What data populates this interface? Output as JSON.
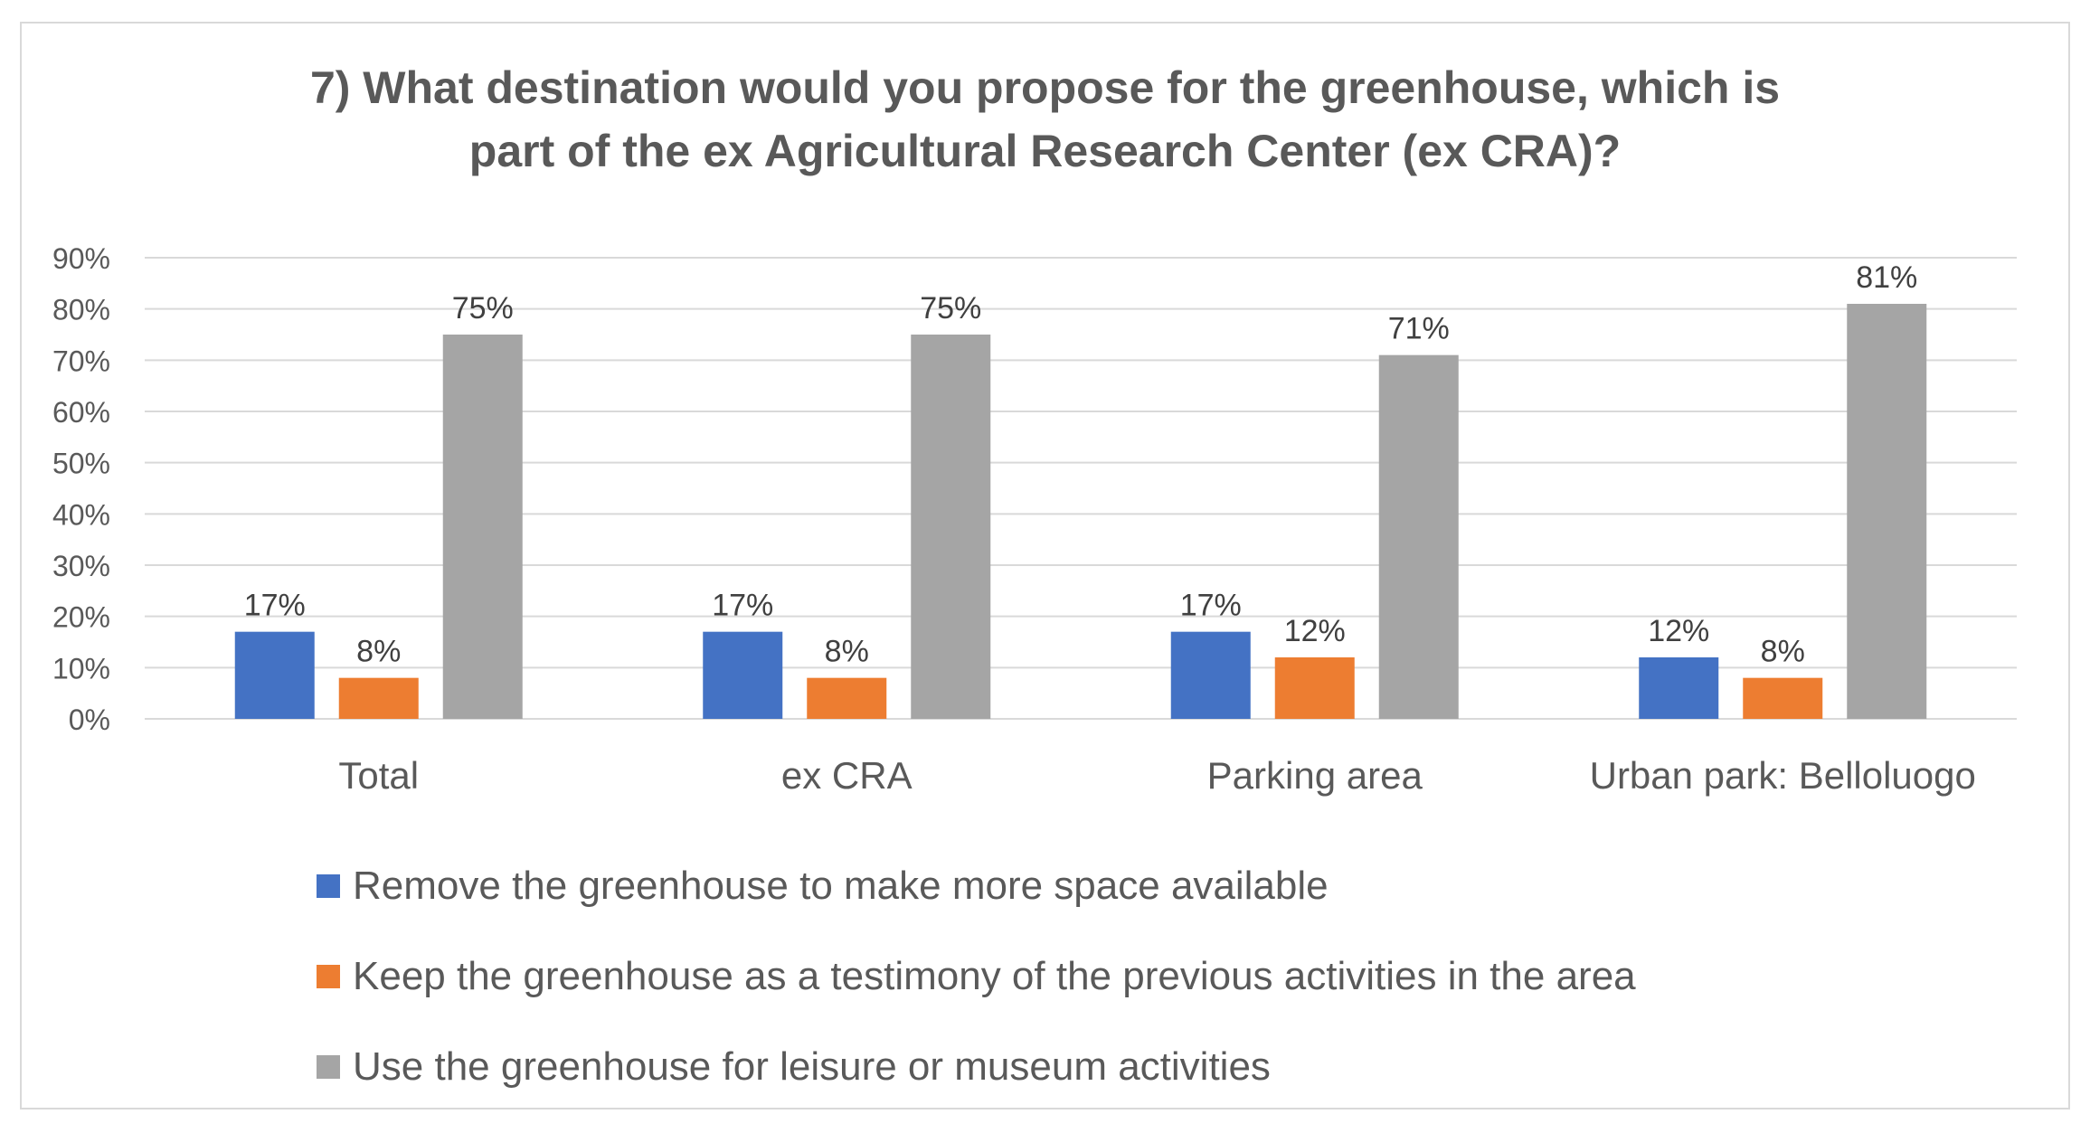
{
  "chart_data": {
    "type": "bar",
    "title_lines": [
      "7) What destination would you propose for the greenhouse, which is",
      "part of the ex Agricultural Research Center (ex CRA)?"
    ],
    "categories": [
      "Total",
      "ex CRA",
      "Parking area",
      "Urban park: Belloluogo"
    ],
    "series": [
      {
        "name": "Remove the greenhouse to make more space available",
        "values": [
          17,
          17,
          17,
          12
        ],
        "labels": [
          "17%",
          "17%",
          "17%",
          "12%"
        ],
        "color": "#4472c4"
      },
      {
        "name": "Keep the greenhouse as a testimony of the previous activities in the area",
        "values": [
          8,
          8,
          12,
          8
        ],
        "labels": [
          "8%",
          "8%",
          "12%",
          "8%"
        ],
        "color": "#ed7d31"
      },
      {
        "name": "Use the greenhouse for leisure or museum activities",
        "values": [
          75,
          75,
          71,
          81
        ],
        "labels": [
          "75%",
          "75%",
          "71%",
          "81%"
        ],
        "color": "#a5a5a5"
      }
    ],
    "y_ticks": [
      0,
      10,
      20,
      30,
      40,
      50,
      60,
      70,
      80,
      90
    ],
    "y_tick_labels": [
      "0%",
      "10%",
      "20%",
      "30%",
      "40%",
      "50%",
      "60%",
      "70%",
      "80%",
      "90%"
    ],
    "ylim": [
      0,
      90
    ],
    "grid": true,
    "xlabel": "",
    "ylabel": "",
    "legend_position": "bottom-left"
  }
}
